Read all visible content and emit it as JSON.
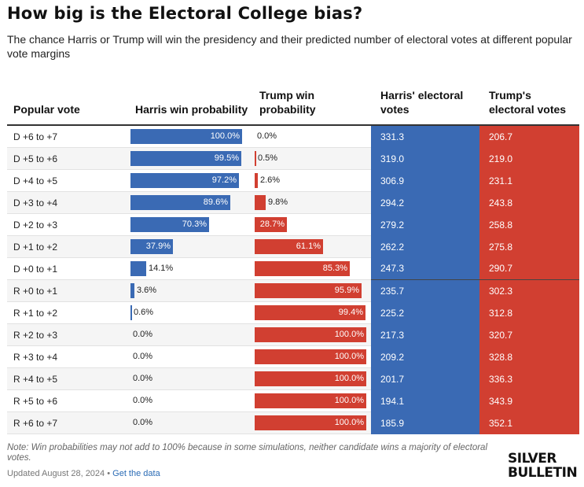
{
  "title": "How big is the Electoral College bias?",
  "subtitle": "The chance Harris or Trump will win the presidency and their predicted number of electoral votes at different popular vote margins",
  "columns": {
    "popular_vote": "Popular vote",
    "harris_win": "Harris win probability",
    "trump_win": "Trump win probability",
    "harris_ev": "Harris' electoral votes",
    "trump_ev": "Trump's electoral votes"
  },
  "colors": {
    "harris": "#3a6ab4",
    "trump": "#d13f31"
  },
  "chart_data": {
    "type": "table",
    "rows": [
      {
        "popular_vote": "D +6 to +7",
        "harris_win": 100.0,
        "harris_win_label": "100.0%",
        "trump_win": 0.0,
        "trump_win_label": "0.0%",
        "harris_ev": "331.3",
        "trump_ev": "206.7"
      },
      {
        "popular_vote": "D +5 to +6",
        "harris_win": 99.5,
        "harris_win_label": "99.5%",
        "trump_win": 0.5,
        "trump_win_label": "0.5%",
        "harris_ev": "319.0",
        "trump_ev": "219.0"
      },
      {
        "popular_vote": "D +4 to +5",
        "harris_win": 97.2,
        "harris_win_label": "97.2%",
        "trump_win": 2.6,
        "trump_win_label": "2.6%",
        "harris_ev": "306.9",
        "trump_ev": "231.1"
      },
      {
        "popular_vote": "D +3 to +4",
        "harris_win": 89.6,
        "harris_win_label": "89.6%",
        "trump_win": 9.8,
        "trump_win_label": "9.8%",
        "harris_ev": "294.2",
        "trump_ev": "243.8"
      },
      {
        "popular_vote": "D +2 to +3",
        "harris_win": 70.3,
        "harris_win_label": "70.3%",
        "trump_win": 28.7,
        "trump_win_label": "28.7%",
        "harris_ev": "279.2",
        "trump_ev": "258.8"
      },
      {
        "popular_vote": "D +1 to +2",
        "harris_win": 37.9,
        "harris_win_label": "37.9%",
        "trump_win": 61.1,
        "trump_win_label": "61.1%",
        "harris_ev": "262.2",
        "trump_ev": "275.8"
      },
      {
        "popular_vote": "D +0 to +1",
        "harris_win": 14.1,
        "harris_win_label": "14.1%",
        "trump_win": 85.3,
        "trump_win_label": "85.3%",
        "harris_ev": "247.3",
        "trump_ev": "290.7"
      },
      {
        "popular_vote": "R +0 to +1",
        "harris_win": 3.6,
        "harris_win_label": "3.6%",
        "trump_win": 95.9,
        "trump_win_label": "95.9%",
        "harris_ev": "235.7",
        "trump_ev": "302.3"
      },
      {
        "popular_vote": "R +1 to +2",
        "harris_win": 0.6,
        "harris_win_label": "0.6%",
        "trump_win": 99.4,
        "trump_win_label": "99.4%",
        "harris_ev": "225.2",
        "trump_ev": "312.8"
      },
      {
        "popular_vote": "R +2 to +3",
        "harris_win": 0.0,
        "harris_win_label": "0.0%",
        "trump_win": 100.0,
        "trump_win_label": "100.0%",
        "harris_ev": "217.3",
        "trump_ev": "320.7"
      },
      {
        "popular_vote": "R +3 to +4",
        "harris_win": 0.0,
        "harris_win_label": "0.0%",
        "trump_win": 100.0,
        "trump_win_label": "100.0%",
        "harris_ev": "209.2",
        "trump_ev": "328.8"
      },
      {
        "popular_vote": "R +4 to +5",
        "harris_win": 0.0,
        "harris_win_label": "0.0%",
        "trump_win": 100.0,
        "trump_win_label": "100.0%",
        "harris_ev": "201.7",
        "trump_ev": "336.3"
      },
      {
        "popular_vote": "R +5 to +6",
        "harris_win": 0.0,
        "harris_win_label": "0.0%",
        "trump_win": 100.0,
        "trump_win_label": "100.0%",
        "harris_ev": "194.1",
        "trump_ev": "343.9"
      },
      {
        "popular_vote": "R +6 to +7",
        "harris_win": 0.0,
        "harris_win_label": "0.0%",
        "trump_win": 100.0,
        "trump_win_label": "100.0%",
        "harris_ev": "185.9",
        "trump_ev": "352.1"
      }
    ]
  },
  "footer": {
    "note": "Note: Win probabilities may not add to 100% because in some simulations, neither candidate wins a majority of electoral votes.",
    "updated": "Updated August 28, 2024",
    "separator": " • ",
    "link": "Get the data",
    "logo_line1": "SILVER",
    "logo_line2": "BULLETIN"
  }
}
